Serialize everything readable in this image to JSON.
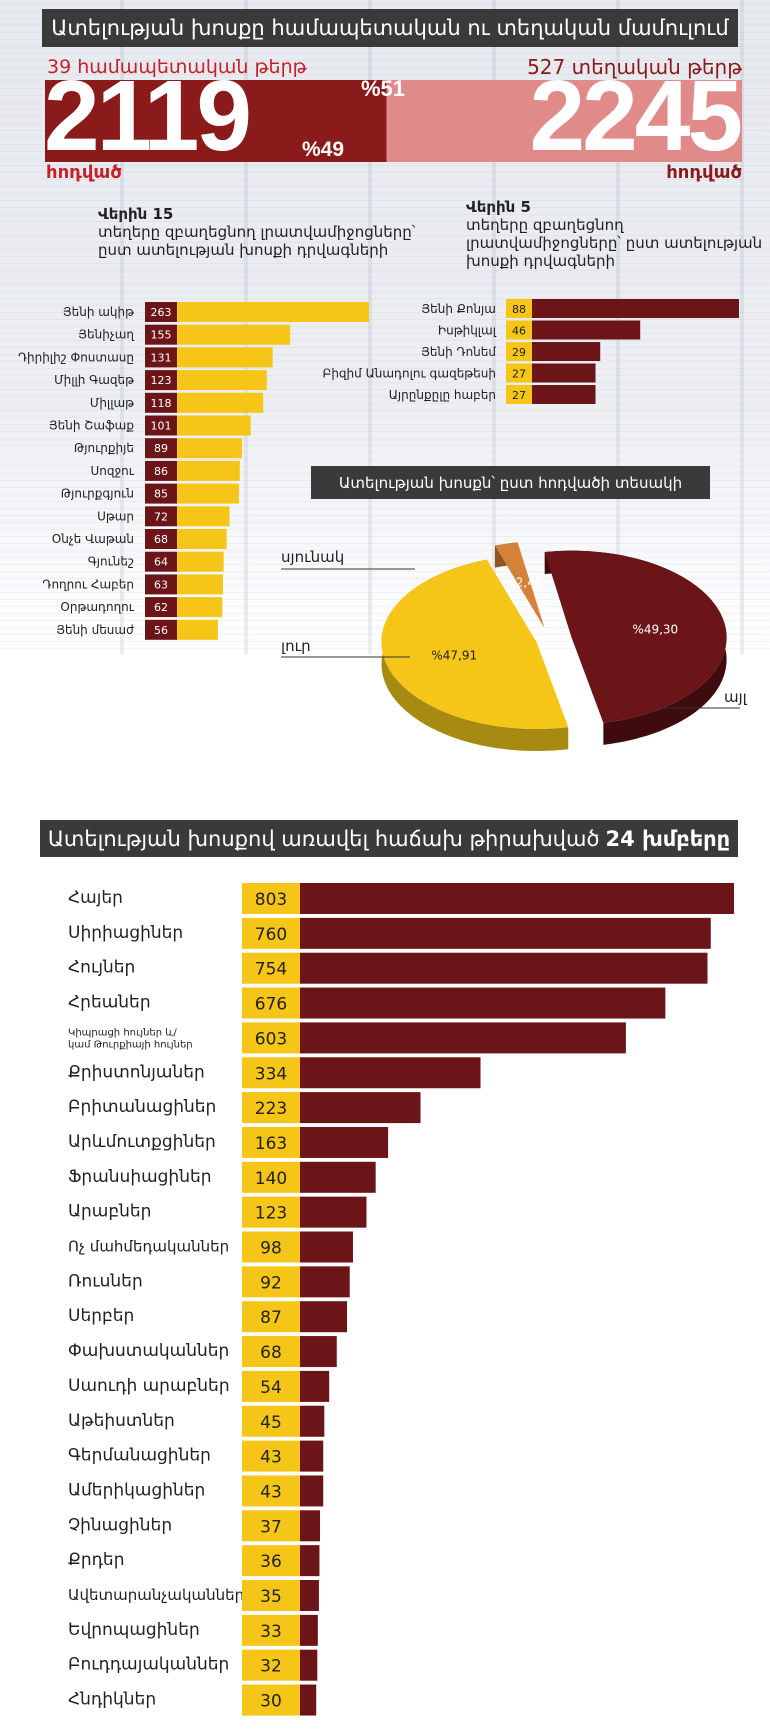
{
  "infographic": {
    "header1": "Ատելության խոսքը համապետական ու տեղական մամուլում",
    "national": {
      "label": "39 համապետական թերթ",
      "count": "2119",
      "unit": "հոդված",
      "percent": "%49"
    },
    "local": {
      "label": "527 տեղական թերթ",
      "count": "2245",
      "unit": "հոդված",
      "percent": "%51"
    },
    "share_bar": {
      "national_share": 0.49,
      "local_share": 0.51
    },
    "left_subtitle_bold": "Վերին 15",
    "left_subtitle": "տեղերը զբաղեցնող լրատվամիջոցները՝ ըստ ատելության խոսքի դրվագների",
    "right_subtitle_bold": "Վերին 5",
    "right_subtitle": "տեղերը զբաղեցնող լրատվամիջոցները՝ ըստ ատելության խոսքի դրվագների",
    "pie_title": "Ատելության խոսքն՝ ըստ հոդվածի տեսակի",
    "header2_prefix": "Ատելության խոսքով առավել հաճախ թիրախված",
    "header2_bold": "24 խմբերը"
  },
  "colors": {
    "yellow": "#f5c518",
    "dark_red": "#6b1518",
    "mid_red": "#8b1a1a",
    "light_red": "#e08b89",
    "orange": "#d4813a",
    "header_bg": "#3a3a3a"
  },
  "chart_data": [
    {
      "type": "bar",
      "orientation": "horizontal",
      "categories": [
        "Յենի ակիթ",
        "Յենիչաղ",
        "Դիրիլիշ Փոստասը",
        "Միլլի Գազեթ",
        "Միլլաթ",
        "Յենի Շաֆաք",
        "Թյուրքիյե",
        "Սոզջու",
        "Թյուրքգյուն",
        "Սթար",
        "Օնչե Վաթան",
        "Գյունեշ",
        "Դողրու Հաբեր",
        "Օրթադողու",
        "Յենի մեսաժ"
      ],
      "values": [
        263,
        155,
        131,
        123,
        118,
        101,
        89,
        86,
        85,
        72,
        68,
        64,
        63,
        62,
        56
      ],
      "title": "",
      "xlabel": "",
      "ylabel": ""
    },
    {
      "type": "bar",
      "orientation": "horizontal",
      "categories": [
        "Յենի Քոնյա",
        "Իսթիկլալ",
        "Յենի Դոնեմ",
        "Բիզիմ Անադոլու գազեթեսի",
        "Այրընքըլը հաբեր"
      ],
      "values": [
        88,
        46,
        29,
        27,
        27
      ],
      "title": "",
      "xlabel": "",
      "ylabel": ""
    },
    {
      "type": "pie",
      "title": "Ատելության խոսքն՝ ըստ հոդվածի տեսակի",
      "categories": [
        "սյունակ",
        "լուր",
        "այլ"
      ],
      "values": [
        49.3,
        47.91,
        2.4
      ],
      "value_labels": [
        "%49,30",
        "%47,91",
        "%2,40"
      ]
    },
    {
      "type": "bar",
      "orientation": "horizontal",
      "title": "Ատելության խոսքով առավել հաճախ թիրախված 24 խմբերը",
      "categories": [
        "Հայեր",
        "Սիրիացիներ",
        "Հույներ",
        "Հրեաներ",
        "Կիպրացի հույներ և/ կամ Թուրքիայի հույներ",
        "Քրիստոնյաներ",
        "Բրիտանացիներ",
        "Արևմուտքցիներ",
        "Ֆրանսիացիներ",
        "Արաբներ",
        "Ոչ մահմեդականներ",
        "Ռուսներ",
        "Սերբեր",
        "Փախստականներ",
        "Սաուդի արաբներ",
        "Աթեիստներ",
        "Գերմանացիներ",
        "Ամերիկացիներ",
        "Չինացիներ",
        "Քրդեր",
        "Ավետարանչականներ",
        "Եվրոպացիներ",
        "Բուդդայականներ",
        "Հնդիկներ"
      ],
      "values": [
        803,
        760,
        754,
        676,
        603,
        334,
        223,
        163,
        140,
        123,
        98,
        92,
        87,
        68,
        54,
        45,
        43,
        43,
        37,
        36,
        35,
        33,
        32,
        30
      ],
      "xlabel": "",
      "ylabel": ""
    }
  ]
}
